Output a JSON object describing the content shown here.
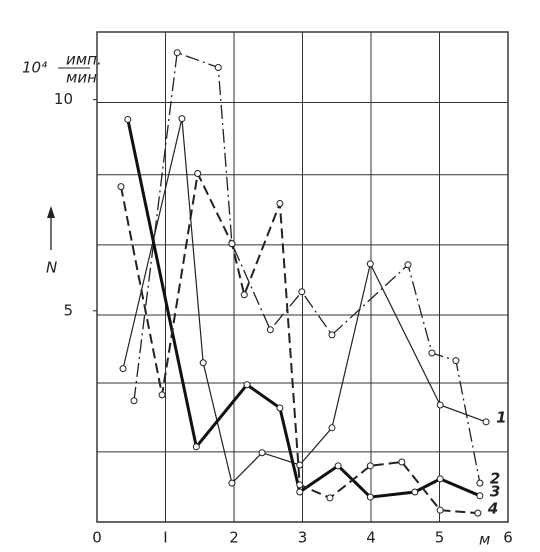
{
  "chart_data": {
    "type": "line",
    "y_label": "N",
    "y_unit_power": "10⁴",
    "y_unit_top": "имп.",
    "y_unit_bottom": "мин",
    "x_unit": "м",
    "xlim": [
      0,
      6
    ],
    "ylim": [
      0,
      11.6
    ],
    "xticks": [
      0,
      {
        "value": 1,
        "label": "I"
      },
      2,
      3,
      4,
      5,
      6
    ],
    "yticks": [
      5,
      10
    ],
    "grid": true,
    "ygrid": [
      1.66,
      3.29,
      4.9,
      6.56,
      8.22,
      9.93,
      11.6
    ],
    "series": [
      {
        "name": "1",
        "color": "#222",
        "style": "solid",
        "width": 1.2,
        "x": [
          0.38,
          1.24,
          1.55,
          1.97,
          2.41,
          2.96,
          3.43,
          3.99,
          5.01,
          5.68
        ],
        "values": [
          3.63,
          9.55,
          3.77,
          0.92,
          1.64,
          1.35,
          2.23,
          6.11,
          2.77,
          2.37
        ]
      },
      {
        "name": "2",
        "color": "#222",
        "style": "dashdot",
        "width": 1.3,
        "x": [
          0.54,
          1.17,
          1.77,
          1.97,
          2.53,
          2.99,
          3.43,
          4.54,
          4.89,
          5.24,
          5.59
        ],
        "values": [
          2.87,
          11.11,
          10.76,
          6.59,
          4.55,
          5.45,
          4.43,
          6.09,
          4.0,
          3.82,
          0.92
        ]
      },
      {
        "name": "3",
        "color": "#111",
        "style": "solid",
        "width": 3,
        "x": [
          0.45,
          1.45,
          2.19,
          2.67,
          2.96,
          3.52,
          3.99,
          4.64,
          5.01,
          5.59
        ],
        "values": [
          9.53,
          1.78,
          3.25,
          2.7,
          0.71,
          1.33,
          0.59,
          0.71,
          1.02,
          0.62
        ]
      },
      {
        "name": "4",
        "color": "#222",
        "style": "dashed",
        "width": 2,
        "x": [
          0.35,
          0.95,
          1.47,
          1.97,
          2.15,
          2.67,
          2.96,
          3.4,
          3.99,
          4.45,
          5.01,
          5.56
        ],
        "values": [
          7.94,
          3.01,
          8.25,
          6.59,
          5.38,
          7.54,
          0.88,
          0.57,
          1.33,
          1.42,
          0.28,
          0.21
        ]
      }
    ]
  }
}
